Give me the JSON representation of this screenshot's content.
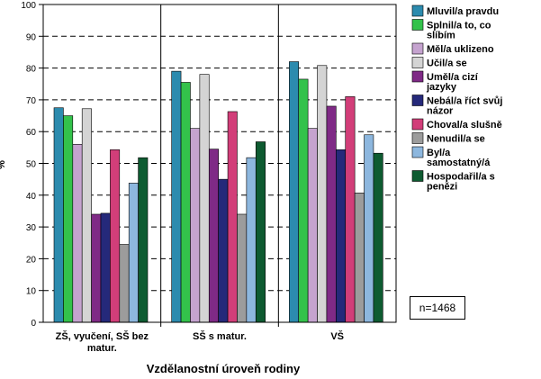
{
  "chart_data": {
    "type": "bar",
    "xlabel": "Vzdělanostní úroveň rodiny",
    "ylabel": "%",
    "ylim": [
      0,
      100
    ],
    "yticks": [
      0,
      10,
      20,
      30,
      40,
      50,
      60,
      70,
      80,
      90,
      100
    ],
    "grid": "horizontal dashed",
    "legend_position": "right",
    "categories": [
      "ZŠ, vyučení, SŠ bez matur.",
      "SŠ s matur.",
      "VŠ"
    ],
    "series": [
      {
        "name": "Mluvil/a pravdu",
        "color": "#2C8BAE",
        "values": [
          67.5,
          79.0,
          82.0
        ]
      },
      {
        "name": "Splnil/a to, co slíbím",
        "color": "#33C24B",
        "values": [
          65.0,
          75.5,
          76.5
        ]
      },
      {
        "name": "Měl/a uklizeno",
        "color": "#C5A3CF",
        "values": [
          56.0,
          61.0,
          61.0
        ]
      },
      {
        "name": "Učil/a se",
        "color": "#D4D4D4",
        "values": [
          67.2,
          78.0,
          80.8
        ]
      },
      {
        "name": "Uměl/a cizí jazyky",
        "color": "#7F2A86",
        "values": [
          34.0,
          54.5,
          68.0
        ]
      },
      {
        "name": "Nebál/a říct svůj názor",
        "color": "#25297A",
        "values": [
          34.3,
          45.0,
          54.3
        ]
      },
      {
        "name": "Choval/a slušně",
        "color": "#D23E79",
        "values": [
          54.3,
          66.3,
          71.0
        ]
      },
      {
        "name": "Nenudil/a se",
        "color": "#9C9C9C",
        "values": [
          24.5,
          34.0,
          40.7
        ]
      },
      {
        "name": "Byl/a samostatný/á",
        "color": "#8DB7DE",
        "values": [
          43.8,
          51.8,
          59.0
        ]
      },
      {
        "name": "Hospodařil/a s penězi",
        "color": "#0E5B31",
        "values": [
          51.8,
          56.8,
          53.2
        ]
      }
    ]
  },
  "note": {
    "text": "n=1468"
  }
}
